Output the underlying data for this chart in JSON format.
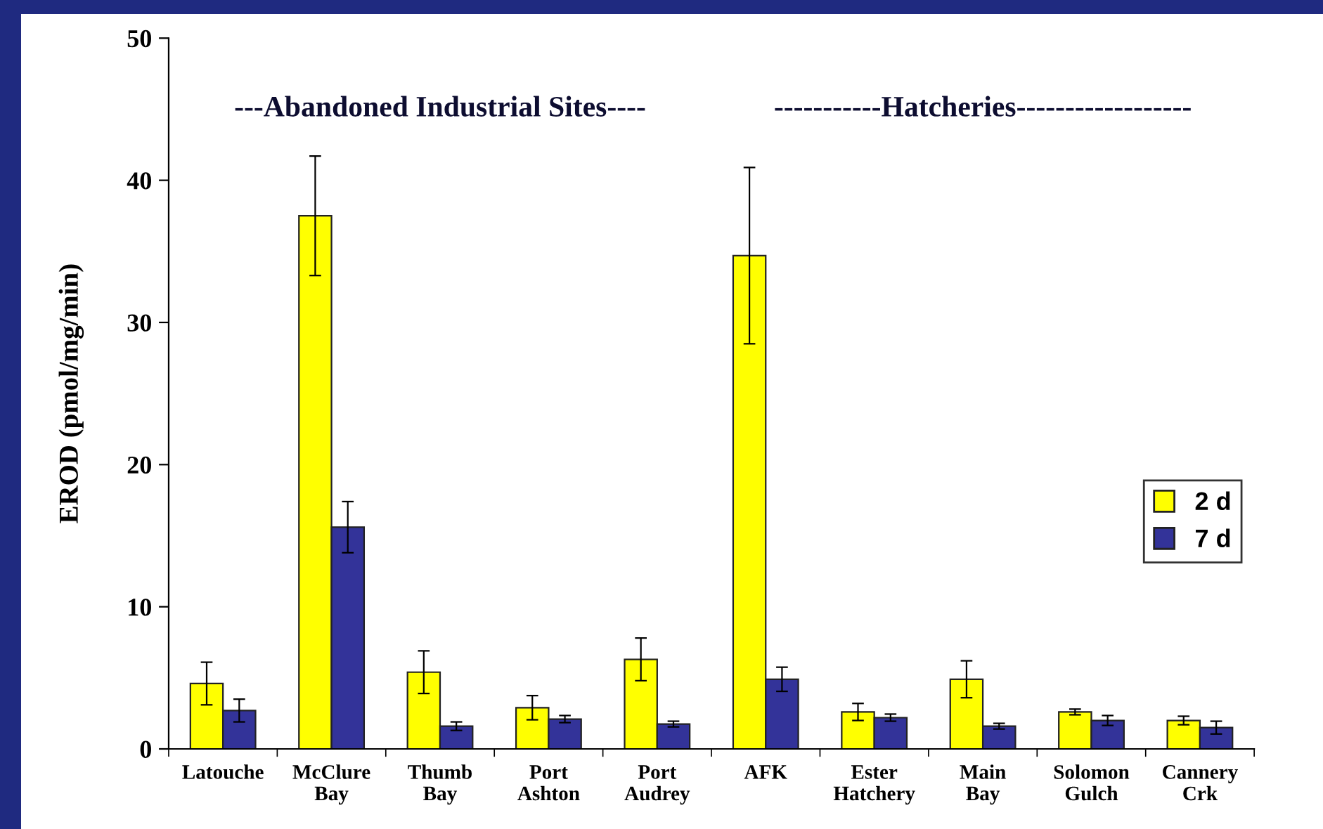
{
  "chart_data": {
    "type": "bar",
    "ylabel": "EROD (pmol/mg/min)",
    "categories": [
      "Latouche",
      "McClure\nBay",
      "Thumb\nBay",
      "Port\nAshton",
      "Port\nAudrey",
      "AFK",
      "Ester\nHatchery",
      "Main\nBay",
      "Solomon\nGulch",
      "Cannery\nCrk"
    ],
    "series": [
      {
        "name": "2 d",
        "color": "#ffff00",
        "values": [
          4.6,
          37.5,
          5.4,
          2.9,
          6.3,
          34.7,
          2.6,
          4.9,
          2.6,
          2.0
        ],
        "errors": [
          1.5,
          4.2,
          1.5,
          0.85,
          1.5,
          6.2,
          0.6,
          1.3,
          0.2,
          0.3
        ]
      },
      {
        "name": "7 d",
        "color": "#333399",
        "values": [
          2.7,
          15.6,
          1.6,
          2.1,
          1.75,
          4.9,
          2.2,
          1.6,
          2.0,
          1.5
        ],
        "errors": [
          0.8,
          1.8,
          0.3,
          0.25,
          0.2,
          0.85,
          0.25,
          0.2,
          0.35,
          0.45
        ]
      }
    ],
    "annotations": [
      "---Abandoned Industrial Sites----",
      "-----------Hatcheries------------------"
    ],
    "ylim": [
      0,
      50
    ],
    "yticks": [
      0,
      10,
      20,
      30,
      40,
      50
    ],
    "legend": "right",
    "grid": false
  }
}
